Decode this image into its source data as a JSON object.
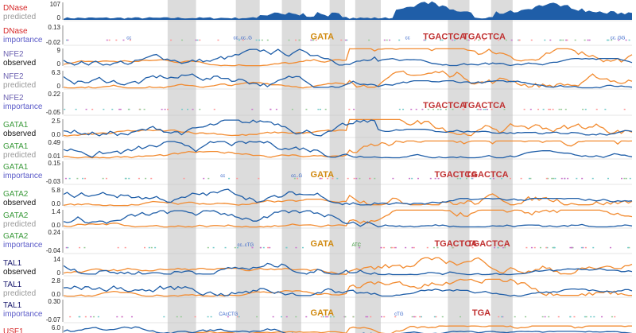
{
  "colors": {
    "dnase": "#d62728",
    "purple": "#6a5fb0",
    "green": "#3a9a3a",
    "navy": "#1a1a6e",
    "predicted_label": "#999999",
    "importance_label": "#5a5ac8",
    "observed_label": "#111111",
    "blue_line": "#1f5ea8",
    "orange_line": "#f28b30",
    "highlight": "#dcdcdc",
    "dnase_fill": "#1f5ea8"
  },
  "chart_data": {
    "type": "line",
    "title": "",
    "x_range": [
      0,
      1
    ],
    "highlight_regions": [
      [
        0.183,
        0.233
      ],
      [
        0.303,
        0.345
      ],
      [
        0.384,
        0.418
      ],
      [
        0.468,
        0.495
      ],
      [
        0.513,
        0.558
      ],
      [
        0.676,
        0.714
      ],
      [
        0.752,
        0.79
      ]
    ],
    "tracks": [
      {
        "name": "DNase",
        "kind": "predicted",
        "color_key": "dnase",
        "ticks": [
          "107",
          "0"
        ],
        "style": "area"
      },
      {
        "name": "DNase",
        "kind": "importance",
        "color_key": "dnase",
        "ticks": [
          "0.13",
          "-0.02"
        ],
        "style": "importance"
      },
      {
        "name": "NFE2",
        "kind": "observed",
        "color_key": "purple",
        "ticks": [
          "9",
          "0"
        ],
        "style": "lines"
      },
      {
        "name": "NFE2",
        "kind": "predicted",
        "color_key": "purple",
        "ticks": [
          "6.3",
          "0"
        ],
        "style": "lines"
      },
      {
        "name": "NFE2",
        "kind": "importance",
        "color_key": "purple",
        "ticks": [
          "0.22",
          "-0.05"
        ],
        "style": "importance"
      },
      {
        "name": "GATA1",
        "kind": "observed",
        "color_key": "green",
        "ticks": [
          "2.5",
          "0.0"
        ],
        "style": "lines"
      },
      {
        "name": "GATA1",
        "kind": "predicted",
        "color_key": "green",
        "ticks": [
          "0.49",
          "0.01"
        ],
        "style": "lines"
      },
      {
        "name": "GATA1",
        "kind": "importance",
        "color_key": "green",
        "ticks": [
          "0.15",
          "-0.03"
        ],
        "style": "importance"
      },
      {
        "name": "GATA2",
        "kind": "observed",
        "color_key": "green",
        "ticks": [
          "5.8",
          "0.0"
        ],
        "style": "lines"
      },
      {
        "name": "GATA2",
        "kind": "predicted",
        "color_key": "green",
        "ticks": [
          "1.4",
          "0.0"
        ],
        "style": "lines"
      },
      {
        "name": "GATA2",
        "kind": "importance",
        "color_key": "green",
        "ticks": [
          "0.24",
          "-0.04"
        ],
        "style": "importance"
      },
      {
        "name": "TAL1",
        "kind": "observed",
        "color_key": "navy",
        "ticks": [
          "14",
          "0"
        ],
        "style": "lines"
      },
      {
        "name": "TAL1",
        "kind": "predicted",
        "color_key": "navy",
        "ticks": [
          "2.8",
          "0.0"
        ],
        "style": "lines"
      },
      {
        "name": "TAL1",
        "kind": "importance",
        "color_key": "navy",
        "ticks": [
          "0.30",
          "-0.07"
        ],
        "style": "importance"
      },
      {
        "name": "USF1",
        "kind": "observed",
        "color_key": "dnase",
        "ticks": [
          "6.0"
        ],
        "style": "lines"
      }
    ],
    "motifs": [
      {
        "track": 1,
        "x": 0.115,
        "text": "cc"
      },
      {
        "track": 1,
        "x": 0.315,
        "text": "cc..cc..G"
      },
      {
        "track": 1,
        "x": 0.455,
        "text": "GATA"
      },
      {
        "track": 1,
        "x": 0.605,
        "text": "cc"
      },
      {
        "track": 1,
        "x": 0.67,
        "text": "TGACTCA"
      },
      {
        "track": 1,
        "x": 0.74,
        "text": "TGACTCA"
      },
      {
        "track": 1,
        "x": 0.975,
        "text": "cc..GG"
      },
      {
        "track": 4,
        "x": 0.67,
        "text": "TGACTCA"
      },
      {
        "track": 4,
        "x": 0.74,
        "text": "TGACTCA"
      },
      {
        "track": 7,
        "x": 0.28,
        "text": "cc"
      },
      {
        "track": 7,
        "x": 0.41,
        "text": "cc..G"
      },
      {
        "track": 7,
        "x": 0.455,
        "text": "GATA"
      },
      {
        "track": 7,
        "x": 0.69,
        "text": "TGACTCA"
      },
      {
        "track": 7,
        "x": 0.745,
        "text": "TGACTCA"
      },
      {
        "track": 10,
        "x": 0.32,
        "text": "cc..cTG"
      },
      {
        "track": 10,
        "x": 0.455,
        "text": "GATA"
      },
      {
        "track": 10,
        "x": 0.515,
        "text": "ATC"
      },
      {
        "track": 10,
        "x": 0.69,
        "text": "TGACTCA"
      },
      {
        "track": 10,
        "x": 0.748,
        "text": "TGACTCA"
      },
      {
        "track": 13,
        "x": 0.29,
        "text": "CAcCTG"
      },
      {
        "track": 13,
        "x": 0.455,
        "text": "GATA"
      },
      {
        "track": 13,
        "x": 0.59,
        "text": "cTG"
      },
      {
        "track": 13,
        "x": 0.735,
        "text": "TGA"
      }
    ]
  }
}
